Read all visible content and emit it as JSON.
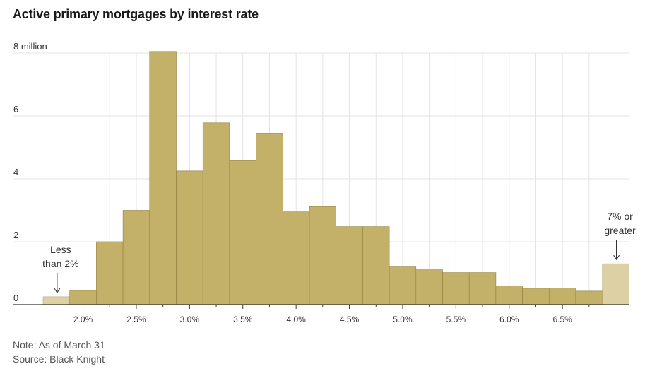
{
  "title": "Active primary mortgages by interest rate",
  "note": "Note: As of March 31",
  "source": "Source: Black Knight",
  "colors": {
    "bar": "#c3b16a",
    "bar_stroke": "#8f7f3e",
    "bar_edge": "#ddd0a4",
    "bar_edge_stroke": "#b8aa78",
    "grid": "#e3e3e3",
    "axis": "#333333"
  },
  "chart_data": {
    "type": "bar",
    "title": "Active primary mortgages by interest rate",
    "xlabel": "",
    "ylabel": "",
    "unit": "million",
    "ylim": [
      0,
      8
    ],
    "grid": true,
    "y_ticks": [
      {
        "value": 0,
        "label": "0"
      },
      {
        "value": 2,
        "label": "2"
      },
      {
        "value": 4,
        "label": "4"
      },
      {
        "value": 6,
        "label": "6"
      },
      {
        "value": 8,
        "label": "8 million"
      }
    ],
    "x_ticks": [
      "2.0%",
      "2.5%",
      "3.0%",
      "3.5%",
      "4.0%",
      "4.5%",
      "5.0%",
      "5.5%",
      "6.0%",
      "6.5%"
    ],
    "bins": [
      {
        "name": "Less than 2%",
        "value": 0.25,
        "edge": true
      },
      {
        "name": "2.0%",
        "value": 0.45
      },
      {
        "name": "2.25%",
        "value": 2.0
      },
      {
        "name": "2.5%",
        "value": 3.0
      },
      {
        "name": "2.75%",
        "value": 8.05
      },
      {
        "name": "3.0%",
        "value": 4.25
      },
      {
        "name": "3.25%",
        "value": 5.78
      },
      {
        "name": "3.5%",
        "value": 4.58
      },
      {
        "name": "3.75%",
        "value": 5.45
      },
      {
        "name": "4.0%",
        "value": 2.95
      },
      {
        "name": "4.25%",
        "value": 3.12
      },
      {
        "name": "4.5%",
        "value": 2.48
      },
      {
        "name": "4.75%",
        "value": 2.48
      },
      {
        "name": "5.0%",
        "value": 1.2
      },
      {
        "name": "5.25%",
        "value": 1.13
      },
      {
        "name": "5.5%",
        "value": 1.02
      },
      {
        "name": "5.75%",
        "value": 1.02
      },
      {
        "name": "6.0%",
        "value": 0.6
      },
      {
        "name": "6.25%",
        "value": 0.52
      },
      {
        "name": "6.5%",
        "value": 0.53
      },
      {
        "name": "6.75%",
        "value": 0.43
      },
      {
        "name": "7% or greater",
        "value": 1.3,
        "edge": true
      }
    ],
    "annotations": [
      {
        "lines": [
          "Less",
          "than 2%"
        ],
        "bin": 0,
        "arrow": "down"
      },
      {
        "lines": [
          "7% or",
          "greater"
        ],
        "bin": 21,
        "arrow": "down"
      }
    ]
  }
}
